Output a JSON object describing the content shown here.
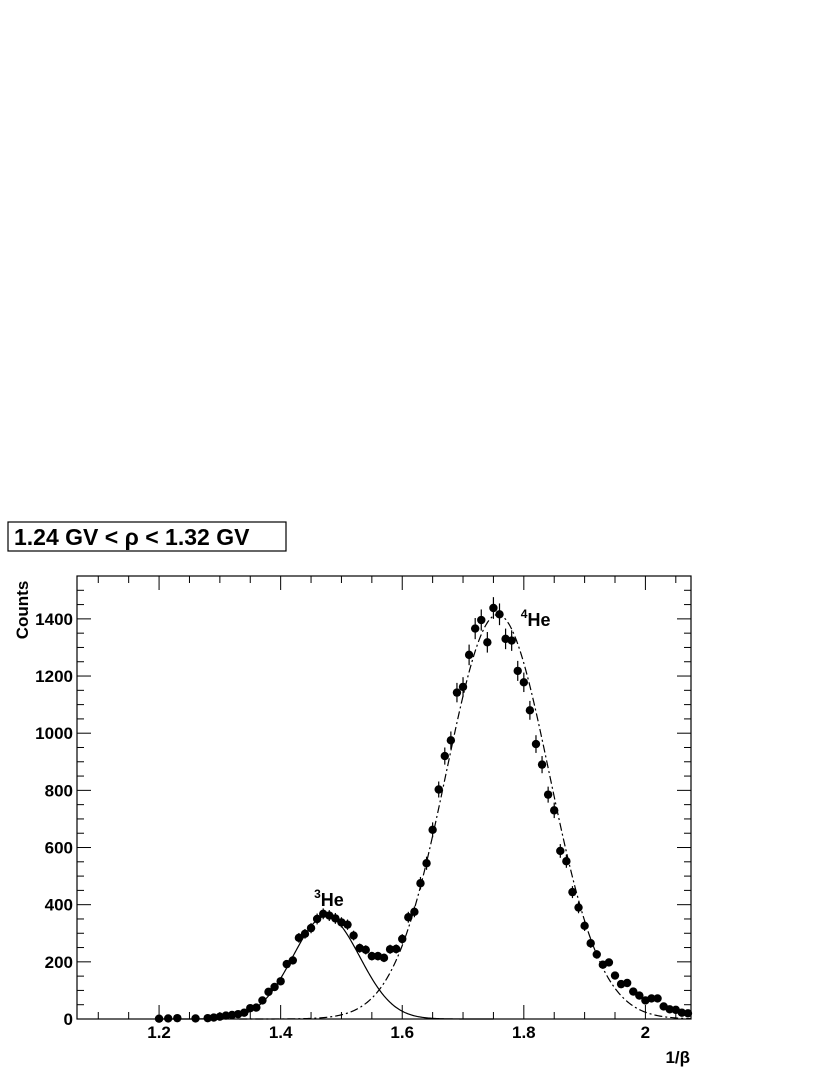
{
  "chart_data": {
    "type": "scatter",
    "title": "1.24 GV < ρ < 1.32 GV",
    "xlabel": "1/β",
    "ylabel": "Counts",
    "xlim": [
      1.065,
      2.075
    ],
    "ylim": [
      0,
      1550
    ],
    "x_ticks": [
      1.2,
      1.4,
      1.6,
      1.8,
      2.0
    ],
    "x_tick_labels": [
      "1.2",
      "1.4",
      "1.6",
      "1.8",
      "2"
    ],
    "y_ticks": [
      0,
      200,
      400,
      600,
      800,
      1000,
      1200,
      1400
    ],
    "y_tick_labels": [
      "0",
      "200",
      "400",
      "600",
      "800",
      "1000",
      "1200",
      "1400"
    ],
    "grid": false,
    "annotations": [
      {
        "text": "He",
        "mass": "3",
        "x": 1.455,
        "y": 395
      },
      {
        "text": "He",
        "mass": "4",
        "x": 1.795,
        "y": 1375
      }
    ],
    "series": [
      {
        "kind": "points",
        "x": [
          1.2,
          1.215,
          1.23,
          1.26,
          1.28,
          1.29,
          1.3,
          1.31,
          1.32,
          1.33,
          1.34,
          1.35,
          1.36,
          1.37,
          1.38,
          1.39,
          1.4,
          1.41,
          1.42,
          1.43,
          1.44,
          1.45,
          1.46,
          1.47,
          1.48,
          1.49,
          1.5,
          1.51,
          1.52,
          1.53,
          1.54,
          1.55,
          1.56,
          1.57,
          1.58,
          1.59,
          1.6,
          1.61,
          1.62,
          1.63,
          1.64,
          1.65,
          1.66,
          1.67,
          1.68,
          1.69,
          1.7,
          1.71,
          1.72,
          1.73,
          1.74,
          1.75,
          1.76,
          1.77,
          1.78,
          1.79,
          1.8,
          1.81,
          1.82,
          1.83,
          1.84,
          1.85,
          1.86,
          1.87,
          1.88,
          1.89,
          1.9,
          1.91,
          1.92,
          1.93,
          1.94,
          1.95,
          1.96,
          1.97,
          1.98,
          1.99,
          2.0,
          2.01,
          2.02,
          2.03,
          2.04,
          2.05,
          2.06,
          2.07
        ],
        "y": [
          1,
          2,
          3,
          2,
          3,
          5,
          8,
          12,
          14,
          17,
          22,
          38,
          40,
          65,
          95,
          112,
          132,
          192,
          205,
          284,
          298,
          318,
          350,
          368,
          362,
          352,
          338,
          330,
          292,
          248,
          242,
          220,
          220,
          214,
          244,
          245,
          280,
          356,
          375,
          475,
          545,
          662,
          803,
          920,
          975,
          1142,
          1162,
          1274,
          1366,
          1396,
          1318,
          1438,
          1416,
          1330,
          1324,
          1218,
          1178,
          1080,
          962,
          890,
          785,
          730,
          588,
          552,
          444,
          390,
          326,
          265,
          226,
          190,
          198,
          152,
          122,
          126,
          96,
          82,
          65,
          72,
          72,
          44,
          34,
          32,
          22,
          20
        ],
        "y_err": [
          1,
          1,
          2,
          1,
          2,
          2,
          3,
          3,
          4,
          4,
          5,
          6,
          6,
          8,
          10,
          11,
          12,
          14,
          14,
          17,
          17,
          18,
          19,
          19,
          19,
          19,
          18,
          18,
          17,
          16,
          16,
          15,
          15,
          15,
          16,
          16,
          17,
          19,
          19,
          22,
          23,
          26,
          28,
          30,
          31,
          34,
          34,
          36,
          37,
          37,
          36,
          38,
          38,
          36,
          36,
          35,
          34,
          33,
          31,
          30,
          28,
          27,
          24,
          23,
          21,
          20,
          18,
          16,
          15,
          14,
          14,
          12,
          11,
          11,
          10,
          9,
          8,
          8,
          8,
          7,
          6,
          6,
          5,
          4
        ]
      },
      {
        "kind": "fit",
        "label": "3He",
        "style": "solid",
        "amplitude": 360,
        "mean": 1.475,
        "sigma": 0.055
      },
      {
        "kind": "fit",
        "label": "4He",
        "style": "dash-dot",
        "amplitude": 1415,
        "mean": 1.757,
        "sigma": 0.085
      }
    ]
  }
}
